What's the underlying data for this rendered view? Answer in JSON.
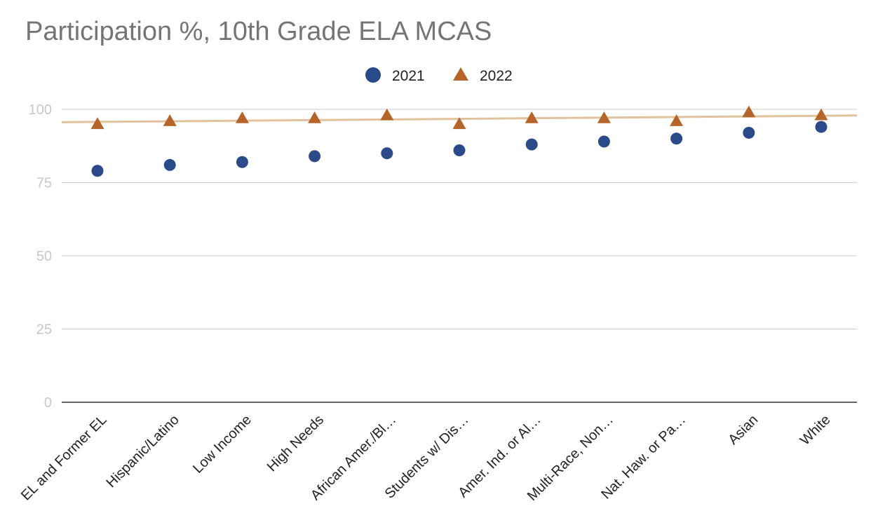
{
  "chart_data": {
    "type": "scatter",
    "title": "Participation %, 10th Grade ELA MCAS",
    "xlabel": "",
    "ylabel": "",
    "ylim": [
      0,
      100
    ],
    "yticks": [
      0,
      25,
      50,
      75,
      100
    ],
    "grid": true,
    "legend_position": "top",
    "categories": [
      "EL and Former EL",
      "Hispanic/Latino",
      "Low Income",
      "High Needs",
      "African Amer./Bl…",
      "Students w/ Dis…",
      "Amer. Ind. or Al…",
      "Multi-Race, Non…",
      "Nat. Haw. or Pa…",
      "Asian",
      "White"
    ],
    "series": [
      {
        "name": "2021",
        "marker": "circle",
        "color": "#2a4a8a",
        "values": [
          79,
          81,
          82,
          84,
          85,
          86,
          88,
          89,
          90,
          92,
          94
        ]
      },
      {
        "name": "2022",
        "marker": "triangle",
        "color": "#b5652a",
        "values": [
          95,
          96,
          97,
          97,
          98,
          95,
          97,
          97,
          96,
          99,
          98
        ]
      }
    ],
    "trendline": {
      "series": "2022",
      "color": "#e2c29e",
      "start": 95.6,
      "end": 97.9
    }
  }
}
